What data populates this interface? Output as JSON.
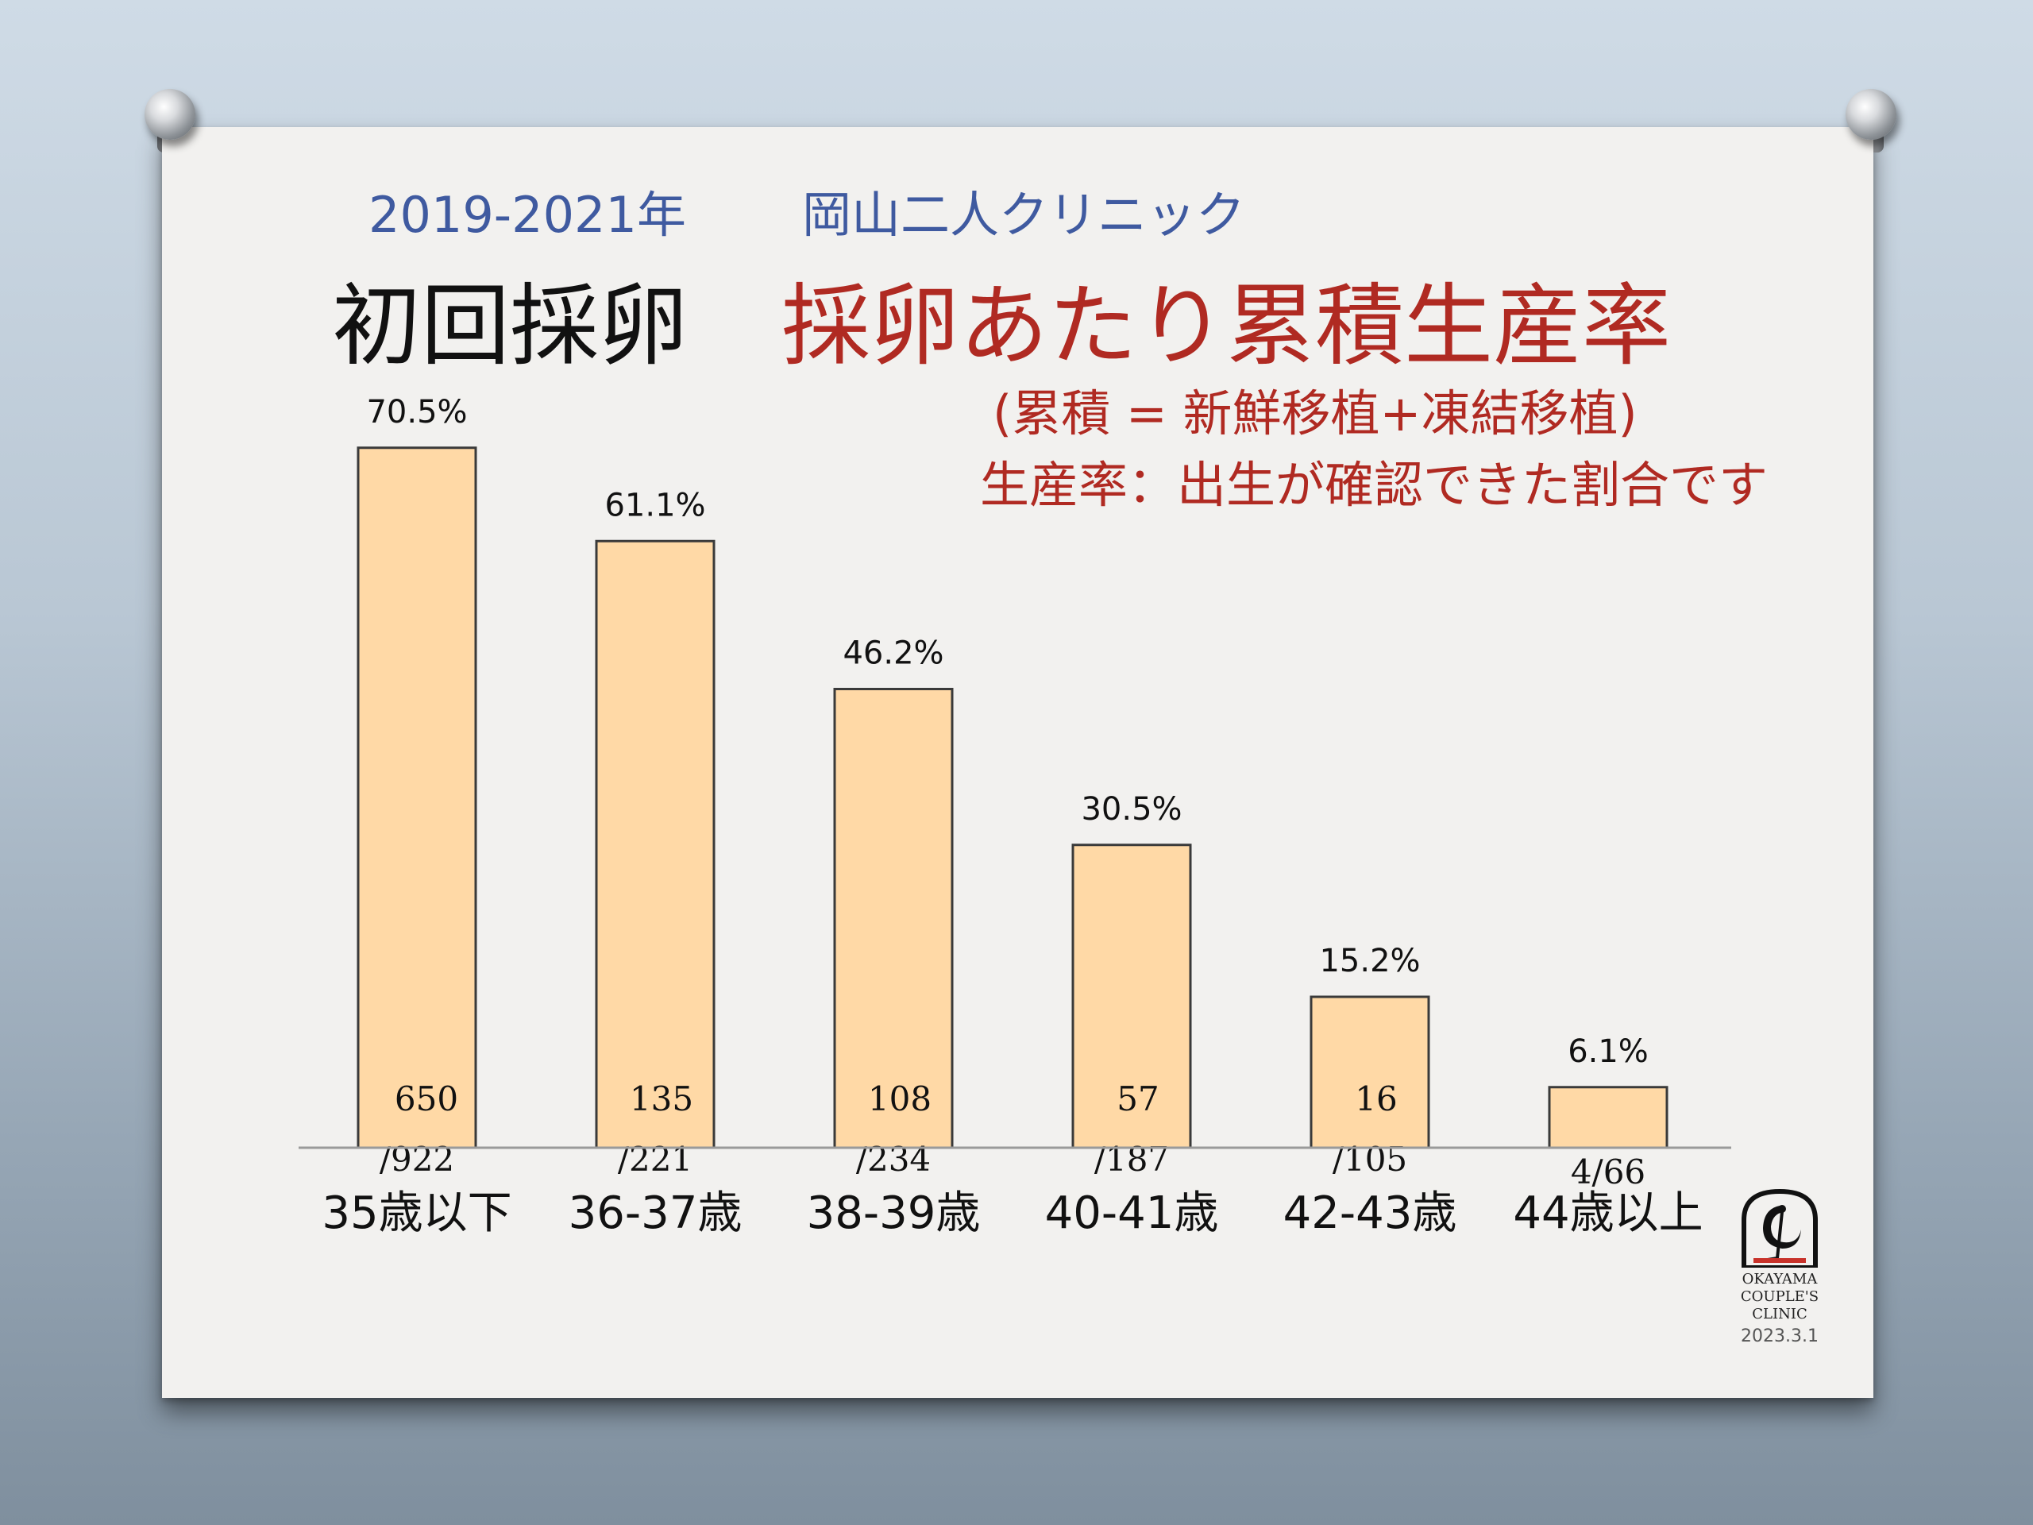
{
  "header": {
    "subtitle_years": "2019-2021年",
    "subtitle_clinic": "岡山二人クリニック",
    "title_left": "初回採卵",
    "title_right": "採卵あたり累積生産率",
    "note_line1": "(累積 = 新鮮移植+凍結移植)",
    "note_line2": "生産率：出生が確認できた割合です"
  },
  "chart_data": {
    "type": "bar",
    "categories": [
      "35歳以下",
      "36-37歳",
      "38-39歳",
      "40-41歳",
      "42-43歳",
      "44歳以上"
    ],
    "values": [
      70.5,
      61.1,
      46.2,
      30.5,
      15.2,
      6.1
    ],
    "value_labels": [
      "70.5%",
      "61.1%",
      "46.2%",
      "30.5%",
      "15.2%",
      "6.1%"
    ],
    "numerators": [
      "650",
      "135",
      "108",
      "57",
      "16",
      ""
    ],
    "denominators": [
      "/922",
      "/221",
      "/234",
      "/187",
      "/105",
      "4/66"
    ],
    "ylim": [
      0,
      80
    ],
    "grid": false,
    "colors": {
      "bar_fill": "#ffd9a6",
      "bar_stroke": "#3a3a3a",
      "axis": "#9a9a9a"
    }
  },
  "logo": {
    "text_lines": [
      "OKAYAMA",
      "COUPLE'S",
      "CLINIC"
    ]
  },
  "footer": {
    "date": "2023.3.1"
  }
}
